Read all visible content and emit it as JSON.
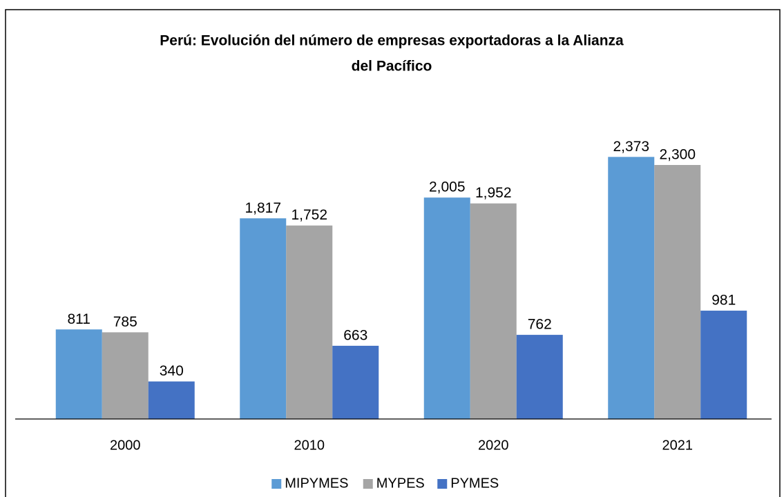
{
  "chart_data": {
    "type": "bar",
    "title": [
      "Perú: Evolución del número de empresas exportadoras  a la Alianza",
      "del Pacífico"
    ],
    "categories": [
      "2000",
      "2010",
      "2020",
      "2021"
    ],
    "series": [
      {
        "name": "MIPYMES",
        "color": "#5b9bd5",
        "values": [
          811,
          1817,
          2005,
          2373
        ],
        "value_labels": [
          "811",
          "1,817",
          "2,005",
          "2,373"
        ]
      },
      {
        "name": "MYPES",
        "color": "#a5a5a5",
        "values": [
          785,
          1752,
          1952,
          2300
        ],
        "value_labels": [
          "785",
          "1,752",
          "1,952",
          "2,300"
        ]
      },
      {
        "name": "PYMES",
        "color": "#4472c4",
        "values": [
          340,
          663,
          762,
          981
        ],
        "value_labels": [
          "340",
          "663",
          "762",
          "981"
        ]
      }
    ],
    "ylim": [
      0,
      2500
    ],
    "legend": "bottom"
  }
}
